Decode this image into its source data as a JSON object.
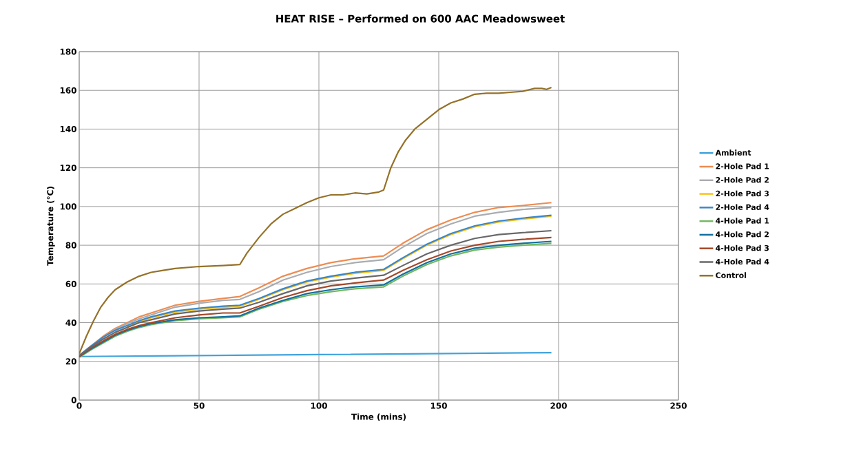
{
  "chart_data": {
    "type": "line",
    "title": "HEAT RISE – Performed on 600 AAC Meadowsweet",
    "xlabel": "Time (mins)",
    "ylabel": "Temperature (°C)",
    "xlim": [
      0,
      250
    ],
    "xticks": [
      0,
      50,
      100,
      150,
      200,
      250
    ],
    "ylim": [
      0,
      180
    ],
    "yticks": [
      0,
      20,
      40,
      60,
      80,
      100,
      120,
      140,
      160,
      180
    ],
    "grid": true,
    "legend": "right",
    "marker": "none",
    "line_style": "solid",
    "x": [
      0,
      5,
      10,
      15,
      20,
      25,
      30,
      40,
      50,
      60,
      67,
      75,
      85,
      95,
      105,
      115,
      127,
      135,
      145,
      155,
      165,
      175,
      185,
      197
    ],
    "series": [
      {
        "name": "Ambient",
        "color": "#41a3dc",
        "x": [
          0,
          100,
          197
        ],
        "values": [
          22.5,
          23.5,
          24.5
        ]
      },
      {
        "name": "2-Hole Pad 1",
        "color": "#ed8c52",
        "values": [
          23,
          28,
          33,
          37,
          40,
          43,
          45,
          49,
          51,
          52.5,
          53.5,
          58,
          64,
          68,
          71,
          73,
          74.5,
          81,
          88,
          93,
          97,
          99.5,
          100.5,
          102
        ]
      },
      {
        "name": "2-Hole Pad 2",
        "color": "#a9acb0",
        "values": [
          23,
          28,
          32.5,
          36.5,
          39.5,
          42,
          44,
          48,
          50,
          51.5,
          52,
          56,
          62,
          66,
          69,
          71,
          72.5,
          79,
          86,
          91,
          95,
          97,
          98.5,
          99.5
        ]
      },
      {
        "name": "2-Hole Pad 3",
        "color": "#f9c216",
        "values": [
          null,
          null,
          null,
          null,
          38,
          40.5,
          42.5,
          45.5,
          47,
          48,
          48.5,
          52,
          57,
          61,
          63.5,
          65.5,
          67,
          73,
          80,
          85.5,
          89.5,
          92,
          93.5,
          95
        ]
      },
      {
        "name": "2-Hole Pad 4",
        "color": "#3a87c8",
        "values": [
          23,
          28,
          32.5,
          36,
          38.5,
          41,
          43,
          46,
          47.5,
          48.5,
          49,
          52.5,
          57.5,
          61.5,
          64,
          66,
          67.5,
          73.5,
          80.5,
          86,
          90,
          92.5,
          94,
          95.5
        ]
      },
      {
        "name": "4-Hole Pad 1",
        "color": "#72b860",
        "values": [
          22,
          26,
          29.5,
          33,
          35.5,
          37.5,
          39,
          41,
          42,
          42.5,
          43,
          47,
          51,
          54,
          56,
          57.5,
          58.5,
          64,
          70,
          74.5,
          77.5,
          79,
          80,
          81
        ]
      },
      {
        "name": "4-Hole Pad 2",
        "color": "#12709f",
        "values": [
          22.5,
          26.5,
          30,
          33.5,
          36,
          38,
          39.5,
          41.5,
          42.5,
          43,
          43.5,
          47.5,
          51.5,
          55,
          57,
          58.5,
          59.5,
          65,
          71,
          75.5,
          78.5,
          80,
          81,
          82
        ]
      },
      {
        "name": "4-Hole Pad 3",
        "color": "#a4482a",
        "values": [
          22.5,
          27,
          30.5,
          34,
          36.5,
          38.5,
          40,
          42.5,
          44,
          45,
          45,
          48.5,
          53,
          56.5,
          59,
          60.5,
          62,
          67,
          72.5,
          77,
          80,
          82,
          83,
          84
        ]
      },
      {
        "name": "4-Hole Pad 4",
        "color": "#686868",
        "values": [
          23,
          27.5,
          31.5,
          35,
          37.5,
          40,
          41.5,
          44.5,
          46,
          47,
          47.5,
          50.5,
          55,
          59,
          61.5,
          63,
          64.5,
          69.5,
          75.5,
          80,
          83.5,
          85.5,
          86.5,
          87.5
        ]
      },
      {
        "name": "Control",
        "color": "#957128",
        "x": [
          0,
          3,
          6,
          9,
          12,
          15,
          20,
          25,
          30,
          35,
          40,
          50,
          60,
          67,
          70,
          75,
          80,
          85,
          90,
          95,
          100,
          105,
          110,
          115,
          120,
          125,
          127,
          130,
          133,
          136,
          140,
          145,
          150,
          155,
          160,
          165,
          170,
          175,
          180,
          185,
          190,
          193,
          195,
          197
        ],
        "values": [
          24,
          33,
          41,
          48,
          53,
          57,
          61,
          64,
          66,
          67,
          68,
          69,
          69.5,
          70,
          76,
          84,
          91,
          96,
          99,
          102,
          104.5,
          106,
          106,
          107,
          106.5,
          107.5,
          108.5,
          120,
          128,
          134,
          140,
          145,
          150,
          153.5,
          155.5,
          158,
          158.5,
          158.5,
          159,
          159.5,
          161,
          161,
          160.5,
          161.5
        ]
      }
    ]
  }
}
